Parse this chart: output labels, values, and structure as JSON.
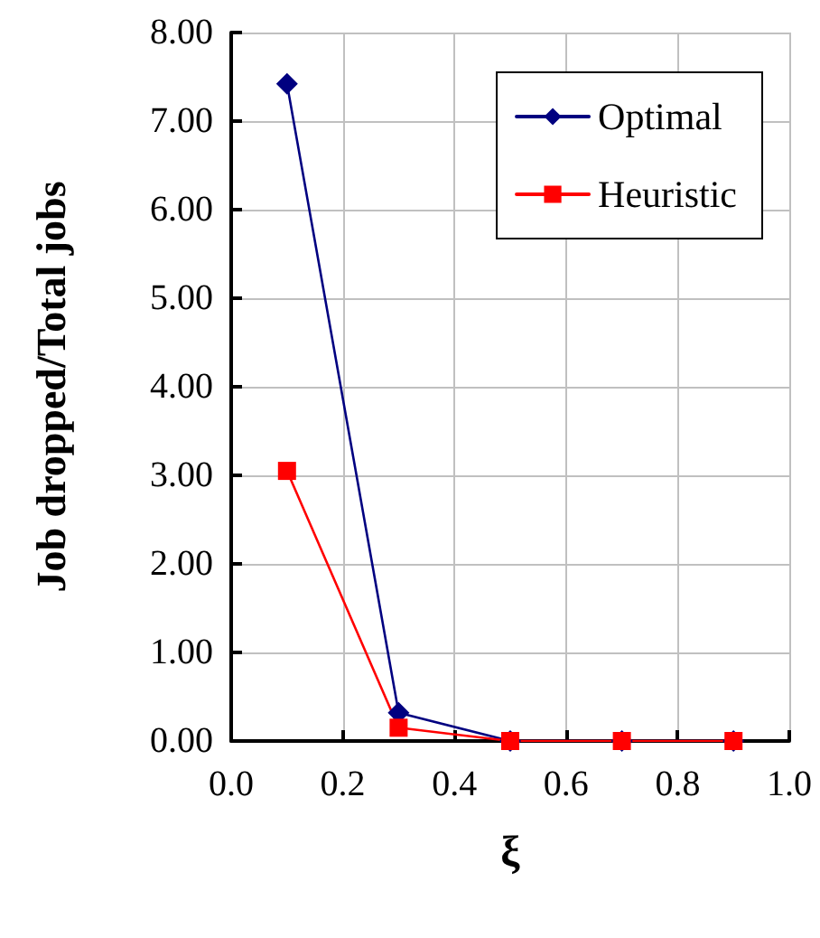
{
  "chart_data": {
    "type": "line",
    "xlabel": "ξ",
    "ylabel": "Job dropped/Total jobs",
    "x": [
      0.1,
      0.3,
      0.5,
      0.7,
      0.9
    ],
    "series": [
      {
        "name": "Optimal",
        "color": "#000080",
        "marker": "diamond",
        "values": [
          7.42,
          0.32,
          0,
          0,
          0
        ]
      },
      {
        "name": "Heuristic",
        "color": "#ff0000",
        "marker": "square",
        "values": [
          3.05,
          0.15,
          0,
          0,
          0
        ]
      }
    ],
    "xlim": [
      0,
      1
    ],
    "xticks": [
      {
        "value": 0,
        "label": "0.0"
      },
      {
        "value": 0.2,
        "label": "0.2"
      },
      {
        "value": 0.4,
        "label": "0.4"
      },
      {
        "value": 0.6,
        "label": "0.6"
      },
      {
        "value": 0.8,
        "label": "0.8"
      },
      {
        "value": 1,
        "label": "1.0"
      }
    ],
    "ylim": [
      0,
      8
    ],
    "yticks": [
      {
        "value": 0,
        "label": "0.00"
      },
      {
        "value": 1,
        "label": "1.00"
      },
      {
        "value": 2,
        "label": "2.00"
      },
      {
        "value": 3,
        "label": "3.00"
      },
      {
        "value": 4,
        "label": "4.00"
      },
      {
        "value": 5,
        "label": "5.00"
      },
      {
        "value": 6,
        "label": "6.00"
      },
      {
        "value": 7,
        "label": "7.00"
      },
      {
        "value": 8,
        "label": "8.00"
      }
    ],
    "grid": true,
    "legend": "top right",
    "line_style": "solid"
  }
}
